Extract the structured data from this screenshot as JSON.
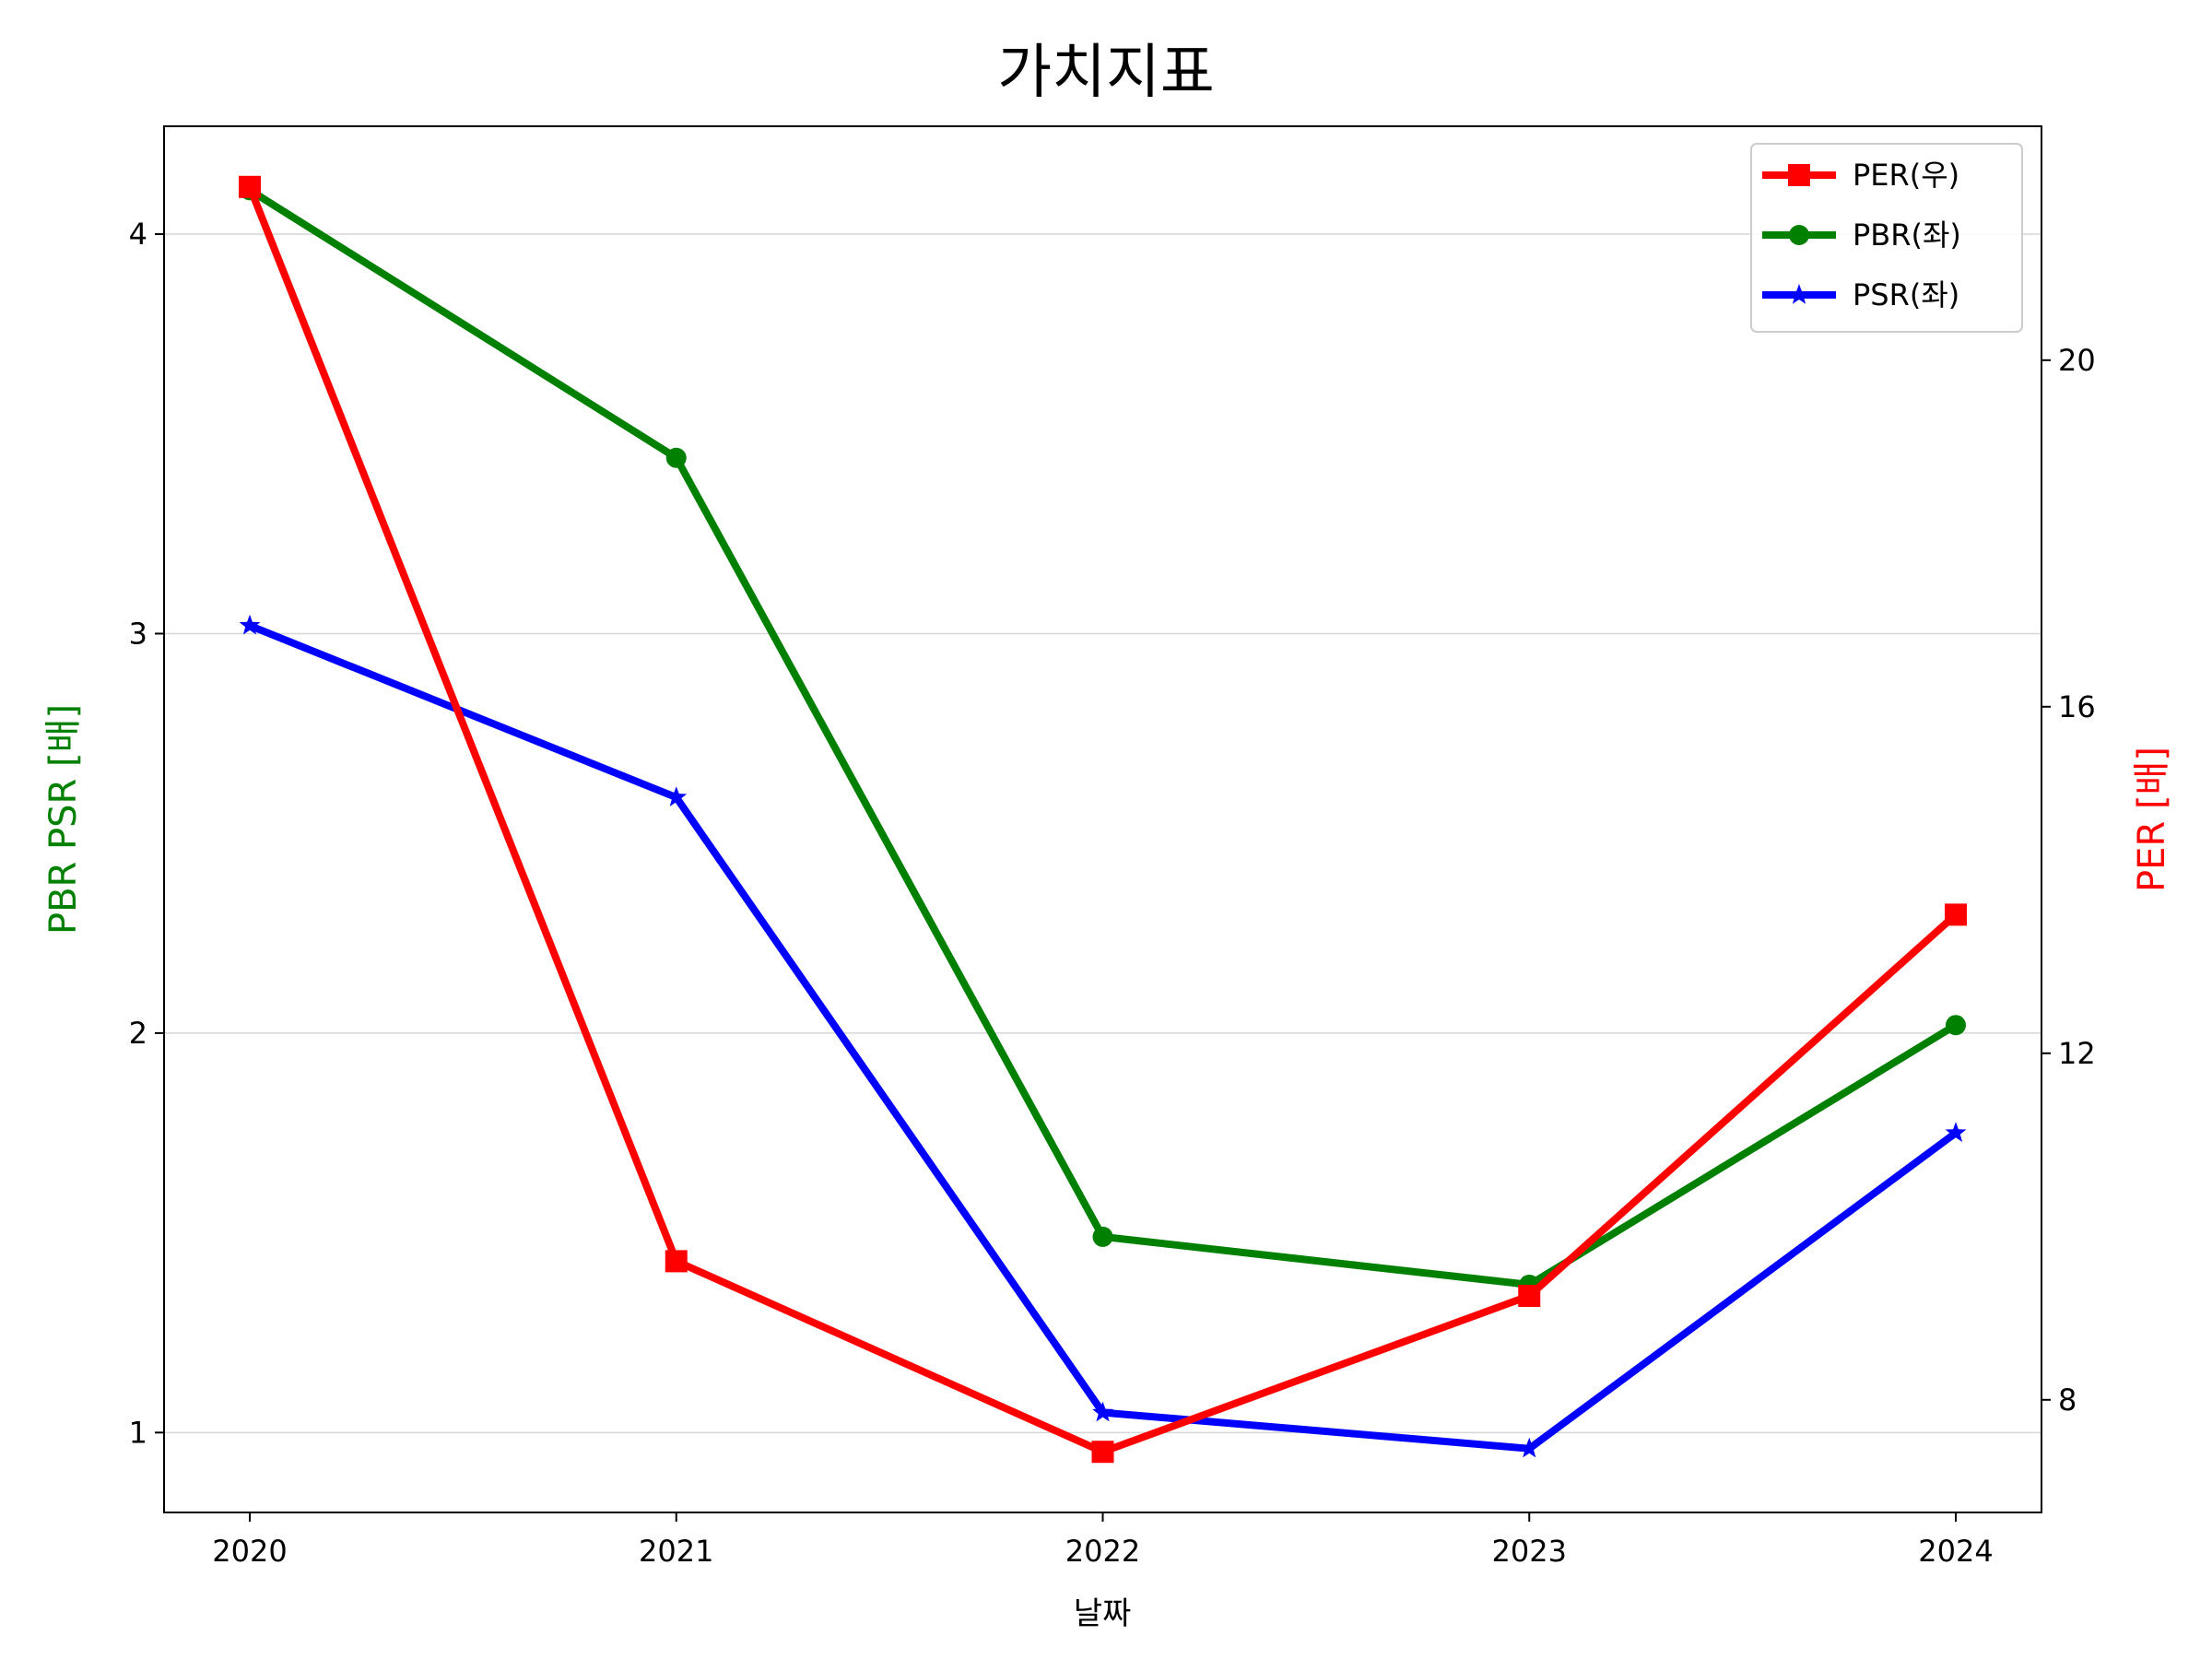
{
  "chart_data": {
    "type": "line",
    "title": "가치지표",
    "xlabel": "날짜",
    "ylabel_left": "PBR PSR [배]",
    "ylabel_right": "PER [배]",
    "categories": [
      "2020",
      "2021",
      "2022",
      "2023",
      "2024"
    ],
    "left_axis": {
      "ylim": [
        0.8,
        4.27
      ],
      "ticks": [
        1,
        2,
        3,
        4
      ],
      "tick_labels": [
        "1",
        "2",
        "3",
        "4"
      ],
      "label_color": "#008000"
    },
    "right_axis": {
      "ylim": [
        6.7,
        22.7
      ],
      "ticks": [
        8,
        12,
        16,
        20
      ],
      "tick_labels": [
        "8",
        "12",
        "16",
        "20"
      ],
      "label_color": "#ff0000"
    },
    "grid": "horizontal (left axis)",
    "legend_position": "top-right",
    "series": [
      {
        "name": "PER(우)",
        "axis": "right",
        "color": "#ff0000",
        "marker": "square",
        "values": [
          22.0,
          9.6,
          7.4,
          9.2,
          13.6
        ]
      },
      {
        "name": "PBR(좌)",
        "axis": "left",
        "color": "#008000",
        "marker": "circle",
        "values": [
          4.11,
          3.44,
          1.49,
          1.37,
          2.02
        ]
      },
      {
        "name": "PSR(좌)",
        "axis": "left",
        "color": "#0000ff",
        "marker": "star",
        "values": [
          3.02,
          2.59,
          1.05,
          0.96,
          1.75
        ]
      }
    ]
  }
}
